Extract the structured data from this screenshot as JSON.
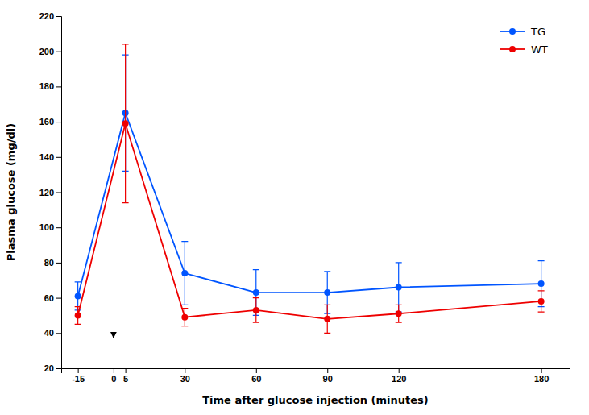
{
  "chart_data": {
    "type": "line",
    "x_label": "Time after glucose injection (minutes)",
    "y_label": "Plasma glucose (mg/dl)",
    "x": [
      -15,
      5,
      30,
      60,
      90,
      120,
      180
    ],
    "series": [
      {
        "name": "TG",
        "color": "#0055FF",
        "marker": "circle",
        "values": [
          61,
          165,
          74,
          63,
          63,
          66,
          68
        ],
        "errors": [
          8,
          33,
          18,
          13,
          12,
          14,
          13
        ]
      },
      {
        "name": "WT",
        "color": "#EE0000",
        "marker": "circle",
        "values": [
          50,
          159,
          49,
          53,
          48,
          51,
          58
        ],
        "errors": [
          5,
          45,
          5,
          7,
          8,
          5,
          6
        ]
      }
    ],
    "annotations": [
      {
        "type": "arrow",
        "x": 0,
        "y": 37,
        "y_from": 38
      }
    ],
    "xlim": [
      -22,
      192
    ],
    "xticks": [
      -15,
      0,
      5,
      30,
      60,
      90,
      120,
      180
    ],
    "ylim": [
      20,
      220
    ],
    "yticks": [
      20,
      40,
      60,
      80,
      100,
      120,
      140,
      160,
      180,
      200,
      220
    ],
    "legend": "upper right",
    "grid": false
  }
}
